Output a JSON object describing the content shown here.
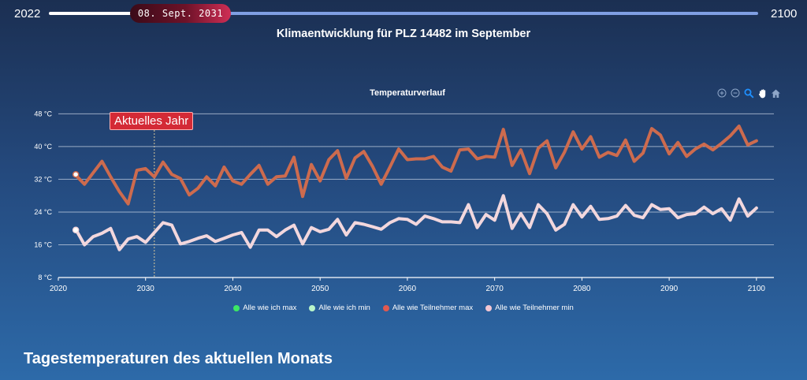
{
  "slider": {
    "start_year": "2022",
    "end_year": "2100",
    "current_date": "08. Sept. 2031"
  },
  "page_title": "Klimaentwicklung für PLZ 14482 im September",
  "section_title": "Tagestemperaturen des aktuellen Monats",
  "toolbar": [
    "zoom-in-icon",
    "zoom-out-icon",
    "magnifier-icon",
    "pan-hand-icon",
    "home-icon"
  ],
  "colors": {
    "max_teilnehmer": "#cd6b4e",
    "min_teilnehmer": "#f2d7dd",
    "max_ich": "#3ce864",
    "min_ich": "#b9f5c9"
  },
  "chart_data": {
    "type": "line",
    "title": "Temperaturverlauf",
    "xlim": [
      2020,
      2102
    ],
    "ylim": [
      8,
      50
    ],
    "x_ticks": [
      "2020",
      "2030",
      "2040",
      "2050",
      "2060",
      "2070",
      "2080",
      "2090",
      "2100"
    ],
    "y_ticks": [
      "8 °C",
      "16 °C",
      "24 °C",
      "32 °C",
      "40 °C",
      "48 °C"
    ],
    "grid": true,
    "annotation": {
      "label": "Aktuelles Jahr",
      "x": 2031
    },
    "legend": [
      "Alle wie ich max",
      "Alle wie ich min",
      "Alle wie Teilnehmer max",
      "Alle wie Teilnehmer min"
    ],
    "legend_position": "bottom",
    "series": [
      {
        "name": "Alle wie ich max",
        "points": [
          [
            2022,
            33.2
          ]
        ]
      },
      {
        "name": "Alle wie ich min",
        "points": [
          [
            2022,
            19.6
          ]
        ]
      },
      {
        "name": "Alle wie Teilnehmer max",
        "x_start": 2022,
        "values": [
          33.0,
          30.8,
          33.6,
          36.4,
          32.6,
          29.0,
          26.0,
          34.2,
          34.6,
          32.6,
          36.2,
          33.2,
          32.2,
          28.2,
          29.8,
          32.6,
          30.4,
          35.0,
          31.6,
          30.8,
          33.2,
          35.4,
          30.8,
          32.6,
          32.8,
          37.4,
          27.8,
          35.6,
          31.6,
          36.8,
          39.0,
          32.2,
          37.2,
          38.8,
          35.2,
          30.8,
          35.0,
          39.4,
          36.8,
          37.0,
          37.0,
          37.6,
          35.0,
          34.0,
          39.2,
          39.4,
          37.0,
          37.6,
          37.4,
          44.2,
          35.4,
          39.2,
          33.4,
          39.6,
          41.4,
          34.8,
          38.6,
          43.6,
          39.4,
          42.4,
          37.4,
          38.6,
          37.8,
          41.6,
          36.4,
          38.4,
          44.4,
          42.8,
          38.2,
          41.0,
          37.6,
          39.4,
          40.6,
          39.2,
          40.8,
          42.6,
          45.0,
          40.4,
          41.4
        ]
      },
      {
        "name": "Alle wie Teilnehmer min",
        "x_start": 2022,
        "values": [
          19.8,
          16.0,
          18.0,
          18.8,
          20.0,
          14.8,
          17.4,
          18.0,
          16.6,
          19.0,
          21.4,
          20.8,
          16.2,
          16.8,
          17.6,
          18.2,
          16.8,
          17.6,
          18.4,
          19.0,
          15.4,
          19.6,
          19.6,
          18.0,
          19.6,
          20.8,
          16.2,
          20.2,
          19.2,
          19.8,
          22.2,
          18.4,
          21.4,
          21.0,
          20.4,
          19.8,
          21.4,
          22.4,
          22.2,
          21.0,
          23.0,
          22.4,
          21.6,
          21.6,
          21.4,
          25.8,
          20.2,
          23.4,
          22.0,
          28.0,
          20.0,
          23.6,
          20.2,
          25.8,
          23.6,
          19.6,
          21.0,
          25.8,
          22.8,
          25.4,
          22.2,
          22.4,
          23.0,
          25.6,
          23.2,
          22.6,
          25.8,
          24.6,
          24.8,
          22.6,
          23.4,
          23.6,
          25.2,
          23.6,
          24.8,
          22.0,
          27.2,
          23.0,
          25.0
        ]
      }
    ]
  }
}
